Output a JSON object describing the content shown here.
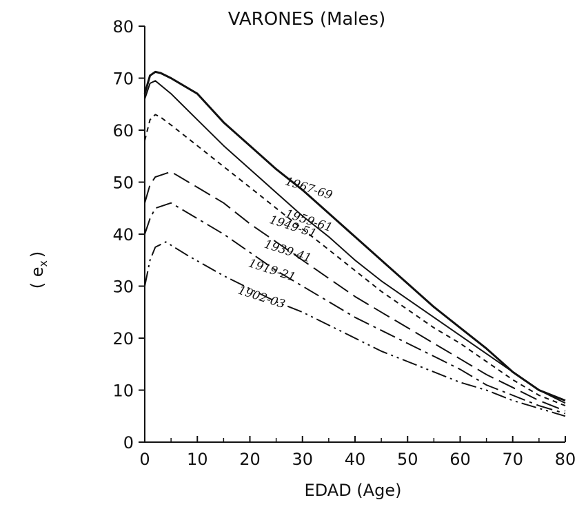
{
  "chart_data": {
    "type": "line",
    "title": "VARONES (Males)",
    "xlabel": "EDAD (Age)",
    "ylabel": "( e",
    "ylabel_subscript": "x",
    "ylabel_close": ")",
    "xlim": [
      0,
      80
    ],
    "ylim": [
      0,
      80
    ],
    "x_ticks": [
      "0",
      "10",
      "20",
      "30",
      "40",
      "50",
      "60",
      "70",
      "80"
    ],
    "y_ticks": [
      "0",
      "10",
      "20",
      "30",
      "40",
      "50",
      "60",
      "70",
      "80"
    ],
    "grid": false,
    "legend": "inline labels",
    "series": [
      {
        "name": "1967-69",
        "dash": "solid",
        "x": [
          0,
          1,
          2,
          3,
          5,
          10,
          15,
          20,
          25,
          30,
          35,
          40,
          45,
          50,
          55,
          60,
          65,
          70,
          75,
          80
        ],
        "y": [
          67,
          70.5,
          71.2,
          71,
          70,
          67,
          61.5,
          57,
          52.5,
          48.5,
          44,
          39.5,
          35,
          30.5,
          26,
          22,
          18,
          13.5,
          10,
          8
        ]
      },
      {
        "name": "1959-61",
        "dash": "solid",
        "x": [
          0,
          1,
          2,
          5,
          10,
          15,
          20,
          25,
          30,
          35,
          40,
          45,
          50,
          55,
          60,
          65,
          70,
          75,
          80
        ],
        "y": [
          66,
          69,
          69.5,
          67,
          62,
          57,
          52.5,
          48,
          43.5,
          39.5,
          35,
          31,
          27.5,
          24,
          20.5,
          17,
          13.5,
          10,
          7.5
        ]
      },
      {
        "name": "1949-51",
        "dash": "short",
        "x": [
          0,
          1,
          2,
          3,
          5,
          10,
          15,
          20,
          25,
          30,
          35,
          40,
          45,
          50,
          55,
          60,
          65,
          70,
          75,
          80
        ],
        "y": [
          58,
          62,
          63,
          62.5,
          61,
          57,
          53,
          49,
          45,
          41,
          37,
          33,
          29,
          25.5,
          22,
          19,
          15.5,
          12,
          9,
          7
        ]
      },
      {
        "name": "1939-41",
        "dash": "long",
        "x": [
          0,
          1,
          2,
          5,
          10,
          15,
          20,
          25,
          30,
          35,
          40,
          45,
          50,
          55,
          60,
          65,
          70,
          75,
          80
        ],
        "y": [
          46,
          49.5,
          51,
          52,
          49,
          46,
          42,
          38.5,
          35,
          31.5,
          28,
          25,
          22,
          19,
          16,
          13,
          10.5,
          8,
          6
        ]
      },
      {
        "name": "1919-21",
        "dash": "dashdot",
        "x": [
          0,
          1,
          2,
          5,
          10,
          15,
          20,
          25,
          30,
          35,
          40,
          45,
          50,
          55,
          60,
          65,
          70,
          75,
          80
        ],
        "y": [
          40,
          43,
          45,
          46,
          43,
          40,
          36.5,
          33,
          30,
          27,
          24,
          21.5,
          19,
          16.5,
          14,
          11,
          9,
          7,
          5.5
        ]
      },
      {
        "name": "1902-03",
        "dash": "dashdotdot",
        "x": [
          0,
          1,
          2,
          4,
          8,
          15,
          20,
          25,
          30,
          35,
          40,
          45,
          50,
          55,
          60,
          65,
          70,
          75,
          80
        ],
        "y": [
          30,
          35,
          37.5,
          38.5,
          36,
          32,
          29.5,
          27,
          25,
          22.5,
          20,
          17.5,
          15.5,
          13.5,
          11.5,
          10,
          8,
          6.5,
          5
        ]
      }
    ]
  }
}
